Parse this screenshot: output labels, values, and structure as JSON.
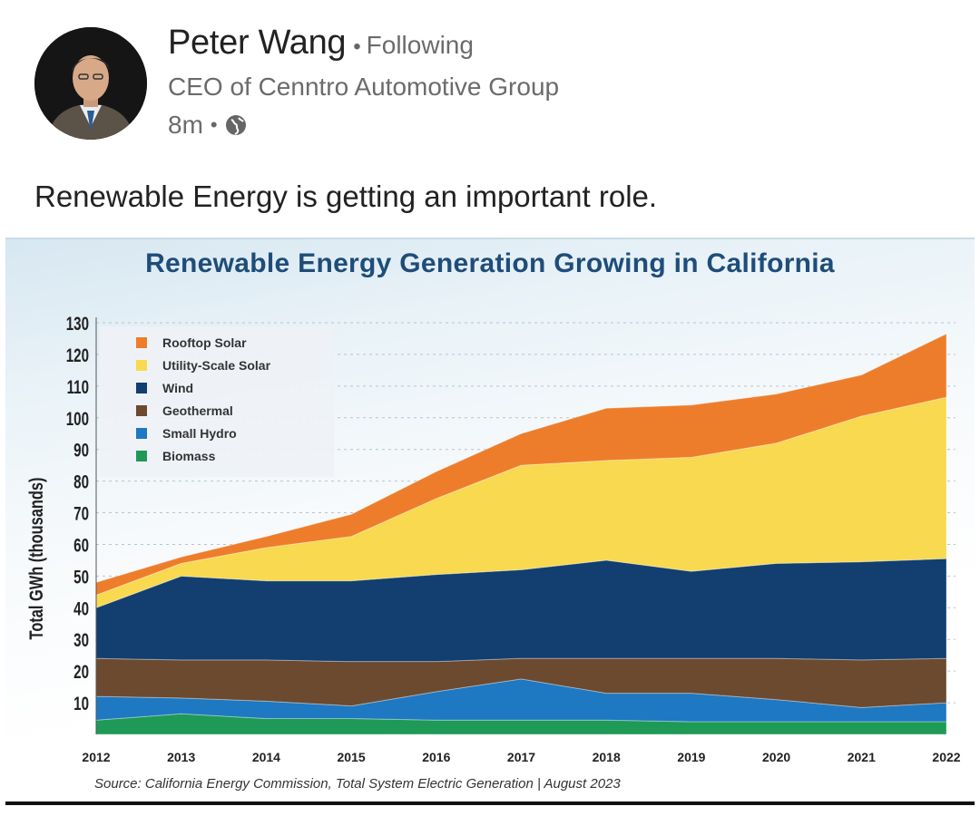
{
  "post": {
    "author_name": "Peter Wang",
    "follow_status": "Following",
    "author_title": "CEO of Cenntro Automotive Group",
    "time_ago": "8m",
    "visibility_icon": "globe-icon",
    "text": "Renewable Energy is getting an important role."
  },
  "chart_image": {
    "source_note": "Source: California Energy Commission, Total System Electric Generation  |  August 2023"
  },
  "chart_data": {
    "type": "area",
    "stacked": true,
    "title": "Renewable Energy Generation Growing in California",
    "ylabel": "Total GWh (thousands)",
    "xlabel": "",
    "x": [
      "2012",
      "2013",
      "2014",
      "2015",
      "2016",
      "2017",
      "2018",
      "2019",
      "2020",
      "2021",
      "2022"
    ],
    "ylim": [
      0,
      130
    ],
    "yticks": [
      10,
      20,
      30,
      40,
      50,
      60,
      70,
      80,
      90,
      100,
      110,
      120,
      130
    ],
    "grid": "horizontal-dashed",
    "legend_position": "top-left",
    "series": [
      {
        "name": "Biomass",
        "color": "#1e9a56",
        "values": [
          4.5,
          6.5,
          5,
          5,
          4.5,
          4.5,
          4.5,
          4,
          4,
          4,
          4
        ]
      },
      {
        "name": "Small Hydro",
        "color": "#1e78c2",
        "values": [
          7.5,
          5,
          5.5,
          4,
          9,
          13,
          8.5,
          9,
          7,
          4.5,
          6
        ]
      },
      {
        "name": "Geothermal",
        "color": "#6b4a30",
        "values": [
          12,
          12,
          13,
          14,
          9.5,
          6.5,
          11,
          11,
          13,
          15,
          14
        ]
      },
      {
        "name": "Wind",
        "color": "#123e70",
        "values": [
          16,
          26.5,
          25,
          25.5,
          27.5,
          28,
          31,
          27.5,
          30,
          31,
          31.5
        ]
      },
      {
        "name": "Utility-Scale Solar",
        "color": "#f8d94f",
        "values": [
          4,
          4,
          10.5,
          14,
          24,
          33,
          31.5,
          36,
          38,
          46,
          51
        ]
      },
      {
        "name": "Rooftop Solar",
        "color": "#ee7d2b",
        "values": [
          4,
          2,
          3.5,
          7,
          8.5,
          10,
          16.5,
          16.5,
          15.5,
          13,
          20
        ]
      }
    ]
  }
}
